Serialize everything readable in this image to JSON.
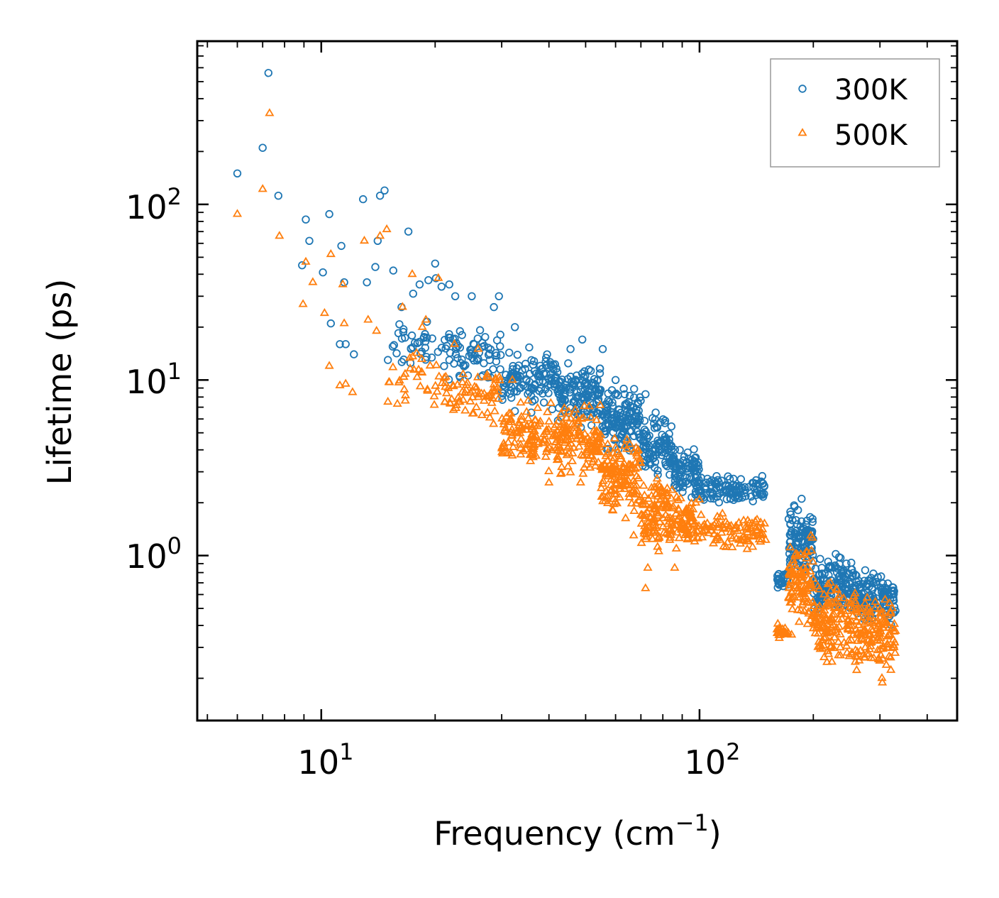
{
  "chart_data": {
    "type": "scatter",
    "title": "",
    "xlabel": "Frequency (cm",
    "xlabel_sup": "−1",
    "xlabel_end": ")",
    "ylabel": "Lifetime (ps)",
    "xscale": "log",
    "yscale": "log",
    "xlim": [
      4.7,
      480
    ],
    "ylim": [
      0.115,
      850
    ],
    "x_ticks": [
      {
        "value": 10,
        "base": "10",
        "exp": "1"
      },
      {
        "value": 100,
        "base": "10",
        "exp": "2"
      }
    ],
    "y_ticks": [
      {
        "value": 1,
        "base": "10",
        "exp": "0"
      },
      {
        "value": 10,
        "base": "10",
        "exp": "1"
      },
      {
        "value": 100,
        "base": "10",
        "exp": "2"
      }
    ],
    "legend_position": "top-right",
    "series": [
      {
        "name": "300K",
        "color": "#1f77b4",
        "marker": "circle",
        "points": [
          [
            6.0,
            150
          ],
          [
            7.0,
            210
          ],
          [
            7.25,
            560
          ],
          [
            7.7,
            112
          ],
          [
            8.9,
            45
          ],
          [
            9.1,
            82
          ],
          [
            9.3,
            62
          ],
          [
            10.1,
            41
          ],
          [
            10.5,
            88
          ],
          [
            10.6,
            21
          ],
          [
            11.2,
            16
          ],
          [
            11.3,
            58
          ],
          [
            11.5,
            36
          ],
          [
            11.6,
            16
          ],
          [
            12.2,
            14
          ],
          [
            12.9,
            107
          ],
          [
            13.2,
            36
          ],
          [
            13.9,
            44
          ],
          [
            14.1,
            62
          ],
          [
            14.3,
            112
          ],
          [
            14.7,
            120
          ],
          [
            15.0,
            13
          ],
          [
            15.5,
            42
          ],
          [
            16.3,
            26
          ],
          [
            17.0,
            70
          ],
          [
            17.5,
            31
          ],
          [
            18.2,
            35
          ],
          [
            19.2,
            37
          ],
          [
            20.0,
            46
          ],
          [
            20.1,
            38
          ],
          [
            20.8,
            34
          ],
          [
            21.8,
            35
          ],
          [
            22.6,
            30
          ],
          [
            25.0,
            30
          ],
          [
            28.6,
            26
          ],
          [
            29.5,
            30
          ],
          [
            32.5,
            20
          ],
          [
            40.5,
            12
          ],
          [
            45.6,
            15
          ],
          [
            49.0,
            17
          ],
          [
            55.5,
            15
          ],
          [
            60.0,
            10
          ],
          [
            65.0,
            7.5
          ],
          [
            72.0,
            8.3
          ]
        ],
        "bands": [
          {
            "x0": 15,
            "x1": 21,
            "ylo": 10,
            "yhi": 24,
            "n": 35
          },
          {
            "x0": 21,
            "x1": 30,
            "ylo": 9,
            "yhi": 22,
            "n": 70
          },
          {
            "x0": 30,
            "x1": 42,
            "ylo": 6,
            "yhi": 17,
            "n": 110
          },
          {
            "x0": 42,
            "x1": 55,
            "ylo": 5,
            "yhi": 14,
            "n": 130
          },
          {
            "x0": 55,
            "x1": 70,
            "ylo": 3.5,
            "yhi": 10,
            "n": 130
          },
          {
            "x0": 70,
            "x1": 85,
            "ylo": 2.5,
            "yhi": 7,
            "n": 100
          },
          {
            "x0": 85,
            "x1": 100,
            "ylo": 1.8,
            "yhi": 4.5,
            "n": 90
          },
          {
            "x0": 100,
            "x1": 150,
            "ylo": 1.8,
            "yhi": 3.1,
            "n": 110
          },
          {
            "x0": 160,
            "x1": 172,
            "ylo": 0.62,
            "yhi": 0.85,
            "n": 25
          },
          {
            "x0": 172,
            "x1": 200,
            "ylo": 0.6,
            "yhi": 2.3,
            "n": 110
          },
          {
            "x0": 200,
            "x1": 260,
            "ylo": 0.42,
            "yhi": 1.1,
            "n": 150
          },
          {
            "x0": 260,
            "x1": 330,
            "ylo": 0.35,
            "yhi": 0.95,
            "n": 130
          }
        ]
      },
      {
        "name": "500K",
        "color": "#ff7f0e",
        "marker": "triangle",
        "points": [
          [
            6.0,
            88
          ],
          [
            7.0,
            122
          ],
          [
            7.3,
            330
          ],
          [
            7.75,
            66
          ],
          [
            8.95,
            27
          ],
          [
            9.1,
            47
          ],
          [
            9.5,
            36
          ],
          [
            10.2,
            24
          ],
          [
            10.5,
            12
          ],
          [
            10.6,
            52
          ],
          [
            11.2,
            9.3
          ],
          [
            11.4,
            35
          ],
          [
            11.5,
            21
          ],
          [
            11.6,
            9.5
          ],
          [
            12.1,
            8.5
          ],
          [
            13.0,
            62
          ],
          [
            13.3,
            22
          ],
          [
            14.0,
            19
          ],
          [
            14.3,
            66
          ],
          [
            14.9,
            72
          ],
          [
            15.0,
            7.5
          ],
          [
            15.9,
            7.3
          ],
          [
            16.4,
            26
          ],
          [
            17.4,
            40
          ],
          [
            18.5,
            20
          ],
          [
            18.9,
            22
          ],
          [
            19.9,
            7.2
          ],
          [
            20.4,
            38
          ],
          [
            22.5,
            16
          ],
          [
            26.0,
            15
          ],
          [
            32.0,
            10
          ],
          [
            35.0,
            5.5
          ],
          [
            40.0,
            2.6
          ],
          [
            48.5,
            2.6
          ],
          [
            67.0,
            1.3
          ],
          [
            72.0,
            0.65
          ],
          [
            73.0,
            0.85
          ],
          [
            80.0,
            1.9
          ],
          [
            86.0,
            0.85
          ]
        ],
        "bands": [
          {
            "x0": 15,
            "x1": 21,
            "ylo": 6.5,
            "yhi": 16,
            "n": 30
          },
          {
            "x0": 21,
            "x1": 30,
            "ylo": 5,
            "yhi": 14,
            "n": 70
          },
          {
            "x0": 30,
            "x1": 42,
            "ylo": 2.8,
            "yhi": 8.5,
            "n": 120
          },
          {
            "x0": 42,
            "x1": 55,
            "ylo": 2.5,
            "yhi": 8,
            "n": 130
          },
          {
            "x0": 55,
            "x1": 70,
            "ylo": 1.5,
            "yhi": 5.5,
            "n": 140
          },
          {
            "x0": 70,
            "x1": 85,
            "ylo": 0.9,
            "yhi": 3.5,
            "n": 110
          },
          {
            "x0": 85,
            "x1": 100,
            "ylo": 0.95,
            "yhi": 2.5,
            "n": 70
          },
          {
            "x0": 100,
            "x1": 150,
            "ylo": 1.0,
            "yhi": 1.8,
            "n": 90
          },
          {
            "x0": 160,
            "x1": 172,
            "ylo": 0.33,
            "yhi": 0.42,
            "n": 20
          },
          {
            "x0": 172,
            "x1": 200,
            "ylo": 0.3,
            "yhi": 1.5,
            "n": 110
          },
          {
            "x0": 200,
            "x1": 260,
            "ylo": 0.2,
            "yhi": 0.85,
            "n": 150
          },
          {
            "x0": 260,
            "x1": 330,
            "ylo": 0.17,
            "yhi": 0.75,
            "n": 130
          }
        ]
      }
    ]
  }
}
